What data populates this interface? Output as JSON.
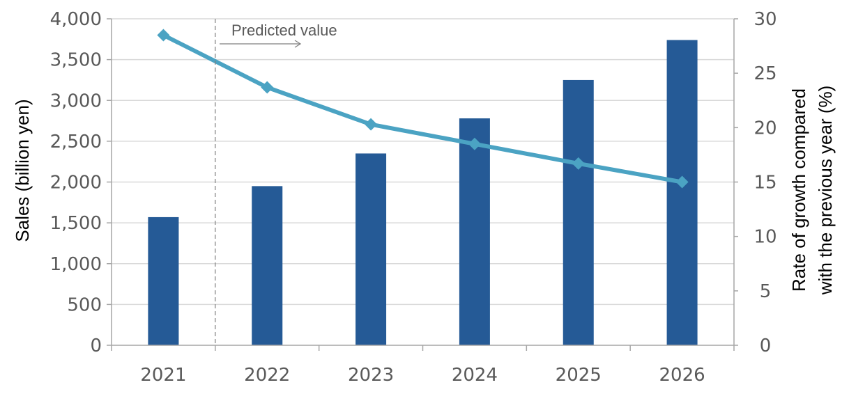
{
  "chart_data": {
    "type": "bar",
    "categories": [
      "2021",
      "2022",
      "2023",
      "2024",
      "2025",
      "2026"
    ],
    "series": [
      {
        "type": "bar",
        "axis": "left",
        "values": [
          1570,
          1950,
          2350,
          2780,
          3250,
          3740
        ]
      },
      {
        "type": "line",
        "axis": "right",
        "values": [
          28.5,
          23.7,
          20.3,
          18.5,
          16.7,
          15.0
        ]
      }
    ],
    "ylabel": "Sales (billion yen)",
    "y2label_lines": [
      "Rate of growth compared",
      "with the previous year (%)"
    ],
    "ylim": [
      0,
      4000
    ],
    "y2lim": [
      0,
      30
    ],
    "yticks": [
      "0",
      "500",
      "1,000",
      "1,500",
      "2,000",
      "2,500",
      "3,000",
      "3,500",
      "4,000"
    ],
    "y2ticks": [
      "0",
      "5",
      "10",
      "15",
      "20",
      "25",
      "30"
    ],
    "annotation": "Predicted value",
    "grid": true,
    "colors": {
      "bar": "#255A96",
      "line": "#4BA3C3",
      "grid": "#D9D9D9",
      "axis": "#A6A6A6",
      "divider": "#7F7F7F"
    }
  }
}
